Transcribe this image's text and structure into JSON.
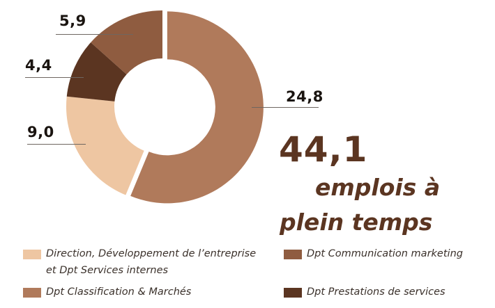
{
  "chart_data": {
    "type": "pie",
    "subtype": "donut",
    "title": "44,1 emplois à plein temps",
    "total": 44.1,
    "unit": "emplois à plein temps",
    "series": [
      {
        "name": "Dpt Classification & Marchés",
        "value": 24.8,
        "label": "24,8",
        "color": "#b07a5b"
      },
      {
        "name": "Direction, Développement de l'entreprise et Dpt Services internes",
        "value": 9.0,
        "label": "9,0",
        "color": "#eec6a2"
      },
      {
        "name": "Dpt Prestations de services",
        "value": 4.4,
        "label": "4,4",
        "color": "#5b3521"
      },
      {
        "name": "Dpt Communication marketing",
        "value": 5.9,
        "label": "5,9",
        "color": "#8f5c40"
      }
    ],
    "start_angle": "12 o'clock",
    "direction": "clockwise",
    "legend_position": "bottom"
  },
  "summary": {
    "total": "44,1",
    "line1": "emplois à",
    "line2": "plein temps"
  },
  "labels": {
    "v1": "24,8",
    "v2": "9,0",
    "v3": "4,4",
    "v4": "5,9"
  },
  "legend": {
    "items": [
      {
        "label_l1": "Direction, Développement de l’entreprise",
        "label_l2": "et Dpt Services internes",
        "color": "#eec6a2"
      },
      {
        "label": "Dpt Communication marketing",
        "color": "#8f5c40"
      },
      {
        "label": "Dpt Classification & Marchés",
        "color": "#b07a5b"
      },
      {
        "label": "Dpt Prestations de services",
        "color": "#5b3521"
      }
    ]
  },
  "colors": {
    "accent_text": "#5b3521",
    "value_text": "#1a1410"
  }
}
